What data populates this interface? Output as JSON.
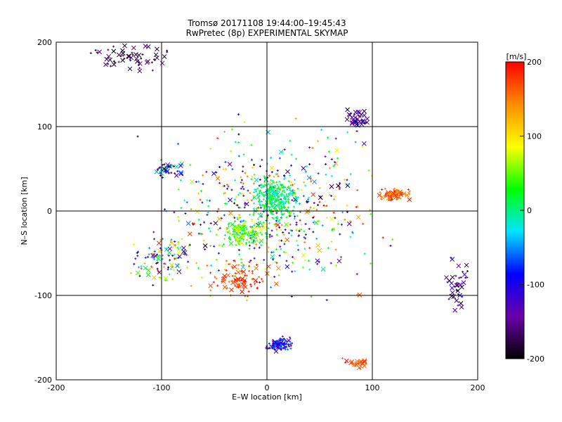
{
  "chart_data": {
    "type": "scatter",
    "title": [
      "Tromsø 20171108 19:44:00–19:45:43",
      "RwPretec (8p) EXPERIMENTAL SKYMAP"
    ],
    "xlabel": "E–W location [km]",
    "ylabel": "N–S location [km]",
    "xlim": [
      -200,
      200
    ],
    "ylim": [
      -200,
      200
    ],
    "xticks": [
      -200,
      -100,
      0,
      100,
      200
    ],
    "yticks": [
      -200,
      -100,
      0,
      100,
      200
    ],
    "grid": true,
    "markers": [
      "+",
      "x"
    ],
    "colorbar": {
      "label": "[m/s]",
      "min": -200,
      "max": 200,
      "ticks": [
        200,
        100,
        0,
        -100,
        -200
      ],
      "stops": [
        "#000000",
        "#6a00a8",
        "#0000ff",
        "#00e5ff",
        "#00ff00",
        "#ffff00",
        "#ff8c00",
        "#ff0000"
      ]
    },
    "clusters": [
      {
        "cx": 0,
        "cy": 0,
        "sx": 95,
        "sy": 85,
        "n": 550,
        "vmin": -200,
        "vmax": 200,
        "cross": 0.12
      },
      {
        "cx": 8,
        "cy": 15,
        "sx": 18,
        "sy": 22,
        "n": 320,
        "vmin": -30,
        "vmax": 40,
        "cross": 0.02
      },
      {
        "cx": -20,
        "cy": -25,
        "sx": 20,
        "sy": 15,
        "n": 180,
        "vmin": -20,
        "vmax": 90,
        "cross": 0.05
      },
      {
        "cx": 12,
        "cy": -158,
        "sx": 10,
        "sy": 7,
        "n": 130,
        "vmin": -140,
        "vmax": -50,
        "cross": 0.05
      },
      {
        "cx": 120,
        "cy": 20,
        "sx": 14,
        "sy": 7,
        "n": 70,
        "vmin": 130,
        "vmax": 200,
        "cross": 0.5
      },
      {
        "cx": 85,
        "cy": -180,
        "sx": 10,
        "sy": 6,
        "n": 20,
        "vmin": 150,
        "vmax": 200,
        "cross": 0.9
      },
      {
        "cx": 180,
        "cy": -90,
        "sx": 12,
        "sy": 35,
        "n": 40,
        "vmin": -200,
        "vmax": -100,
        "cross": 0.7
      },
      {
        "cx": -130,
        "cy": 180,
        "sx": 35,
        "sy": 15,
        "n": 60,
        "vmin": -200,
        "vmax": -150,
        "cross": 0.6
      },
      {
        "cx": -25,
        "cy": -80,
        "sx": 25,
        "sy": 20,
        "n": 90,
        "vmin": 150,
        "vmax": 200,
        "cross": 0.3
      },
      {
        "cx": 85,
        "cy": 110,
        "sx": 10,
        "sy": 12,
        "n": 40,
        "vmin": -200,
        "vmax": -100,
        "cross": 0.7
      },
      {
        "cx": -100,
        "cy": -60,
        "sx": 30,
        "sy": 25,
        "n": 100,
        "vmin": -200,
        "vmax": 200,
        "cross": 0.25
      },
      {
        "cx": -95,
        "cy": 50,
        "sx": 15,
        "sy": 8,
        "n": 40,
        "vmin": -200,
        "vmax": 60,
        "cross": 0.5
      }
    ]
  }
}
